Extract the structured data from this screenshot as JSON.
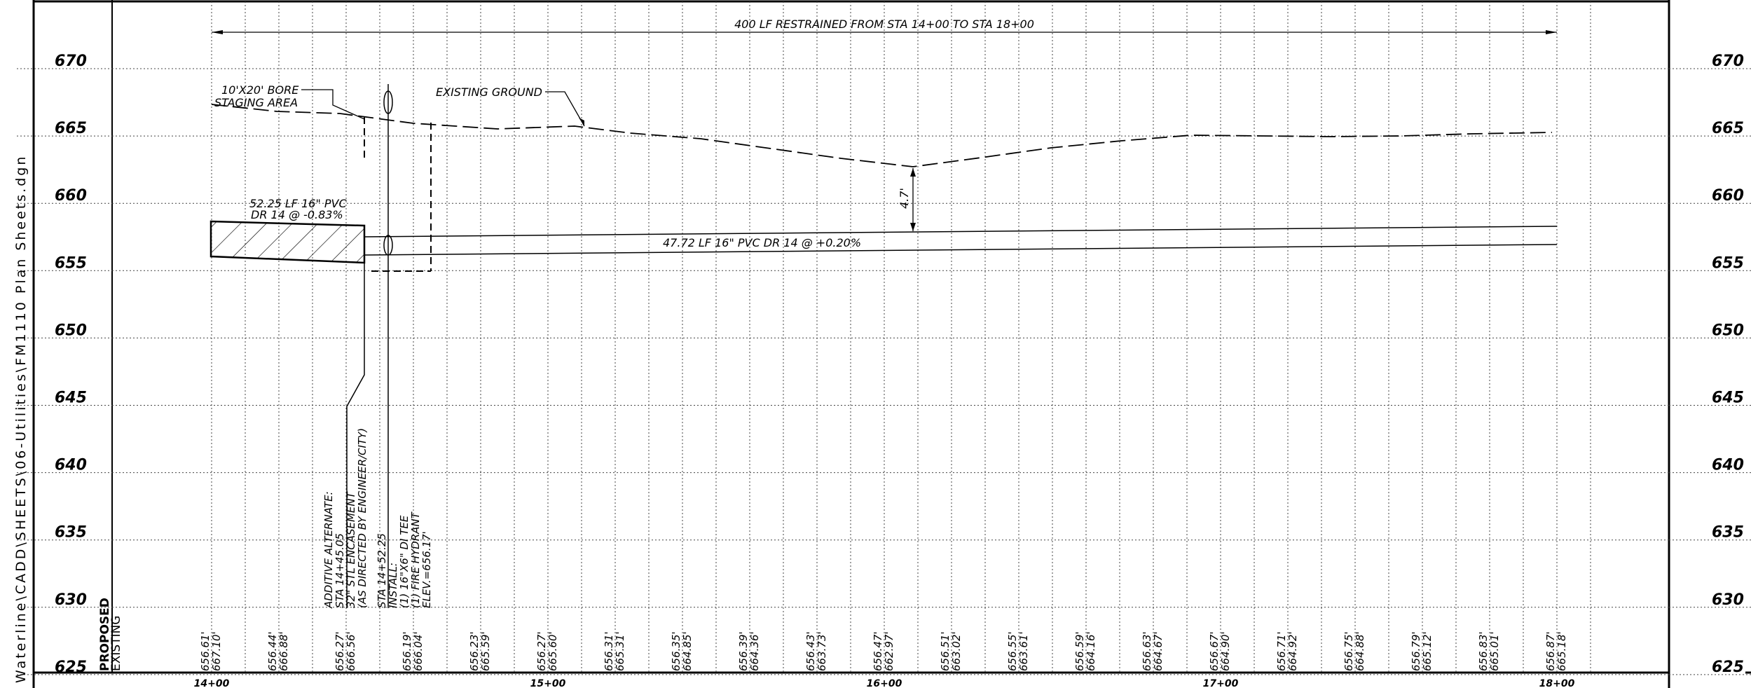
{
  "side_path": "Waterline\\CADD\\SHEETS\\06-Utilities\\FM1110 Plan Sheets.dgn",
  "columns": {
    "proposed": "PROPOSED",
    "existing": "EXISTING"
  },
  "elevations": [
    "670",
    "665",
    "660",
    "655",
    "650",
    "645",
    "640",
    "635",
    "630",
    "625"
  ],
  "stations": [
    "14+00",
    "15+00",
    "16+00",
    "17+00",
    "18+00"
  ],
  "annotations": {
    "restrained": "400 LF RESTRAINED FROM STA 14+00 TO STA 18+00",
    "bore_line1": "10'X20' BORE",
    "bore_line2": "STAGING AREA",
    "existing_ground": "EXISTING GROUND",
    "pipe1_line1": "52.25 LF 16\" PVC",
    "pipe1_line2": "DR 14 @ -0.83%",
    "pipe2": "47.72 LF 16\" PVC DR 14 @ +0.20%",
    "cover": "4.7'"
  },
  "callouts": {
    "alternate": [
      "ADDITIVE ALTERNATE:",
      "STA 14+45.05",
      "32\" STL ENCASEMENT",
      "(AS DIRECTED BY ENGINEER/CITY)"
    ],
    "install": [
      "STA 14+52.25",
      "INSTALL:",
      "(1) 16\"X6\" DI TEE",
      "(1) FIRE HYDRANT",
      "ELEV.=656.17'"
    ]
  },
  "profile_values": [
    {
      "proposed": "656.61'",
      "existing": "667.10'"
    },
    {
      "proposed": "656.44'",
      "existing": "666.88'"
    },
    {
      "proposed": "656.27'",
      "existing": "666.56'"
    },
    {
      "proposed": "656.19'",
      "existing": "666.04'"
    },
    {
      "proposed": "656.23'",
      "existing": "665.59'"
    },
    {
      "proposed": "656.27'",
      "existing": "665.60'"
    },
    {
      "proposed": "656.31'",
      "existing": "665.31'"
    },
    {
      "proposed": "656.35'",
      "existing": "664.85'"
    },
    {
      "proposed": "656.39'",
      "existing": "664.36'"
    },
    {
      "proposed": "656.43'",
      "existing": "663.73'"
    },
    {
      "proposed": "656.47'",
      "existing": "662.97'"
    },
    {
      "proposed": "656.51'",
      "existing": "663.02'"
    },
    {
      "proposed": "656.55'",
      "existing": "663.61'"
    },
    {
      "proposed": "656.59'",
      "existing": "664.16'"
    },
    {
      "proposed": "656.63'",
      "existing": "664.67'"
    },
    {
      "proposed": "656.67'",
      "existing": "664.90'"
    },
    {
      "proposed": "656.71'",
      "existing": "664.92'"
    },
    {
      "proposed": "656.75'",
      "existing": "664.88'"
    },
    {
      "proposed": "656.79'",
      "existing": "665.12'"
    },
    {
      "proposed": "656.83'",
      "existing": "665.01'"
    },
    {
      "proposed": "656.87'",
      "existing": "665.18'"
    }
  ]
}
